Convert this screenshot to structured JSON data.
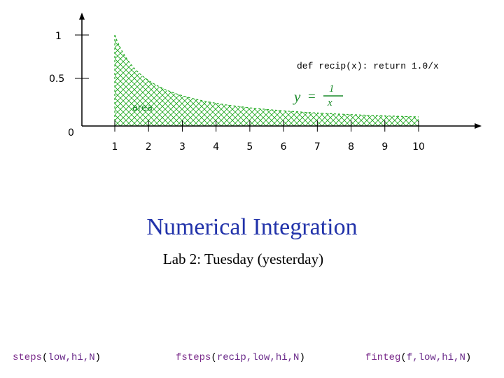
{
  "chart_data": {
    "type": "area",
    "function_label": "def recip(x): return 1.0/x",
    "formula": {
      "y": "y",
      "eq": "=",
      "num": "1",
      "den": "x"
    },
    "area_label": "area",
    "x_ticks": [
      "1",
      "2",
      "3",
      "4",
      "5",
      "6",
      "7",
      "8",
      "9",
      "10"
    ],
    "y_ticks": [
      "1",
      "0.5",
      "0"
    ],
    "xlim": [
      0,
      10
    ],
    "ylim": [
      0,
      1
    ],
    "shaded_interval": [
      1,
      10
    ],
    "series": [
      {
        "x": [
          1,
          1.5,
          2,
          2.5,
          3,
          3.5,
          4,
          5,
          6,
          7,
          8,
          9,
          10
        ],
        "y": [
          1,
          0.667,
          0.5,
          0.4,
          0.333,
          0.286,
          0.25,
          0.2,
          0.167,
          0.143,
          0.125,
          0.111,
          0.1
        ]
      }
    ],
    "colors": {
      "fill_hatch": "#22aa22",
      "formula": "#1a8a2a",
      "area_label": "#1a8a2a"
    }
  },
  "title": "Numerical Integration",
  "subtitle": "Lab 2: Tuesday (yesterday)",
  "functions": [
    {
      "name": "steps",
      "open": "(",
      "args": "low,hi,N",
      "close": ")"
    },
    {
      "name": "fsteps",
      "open": "(",
      "args": "recip,low,hi,N",
      "close": ")"
    },
    {
      "name": "finteg",
      "open": "(",
      "args": "f,low,hi,N",
      "close": ")"
    }
  ]
}
